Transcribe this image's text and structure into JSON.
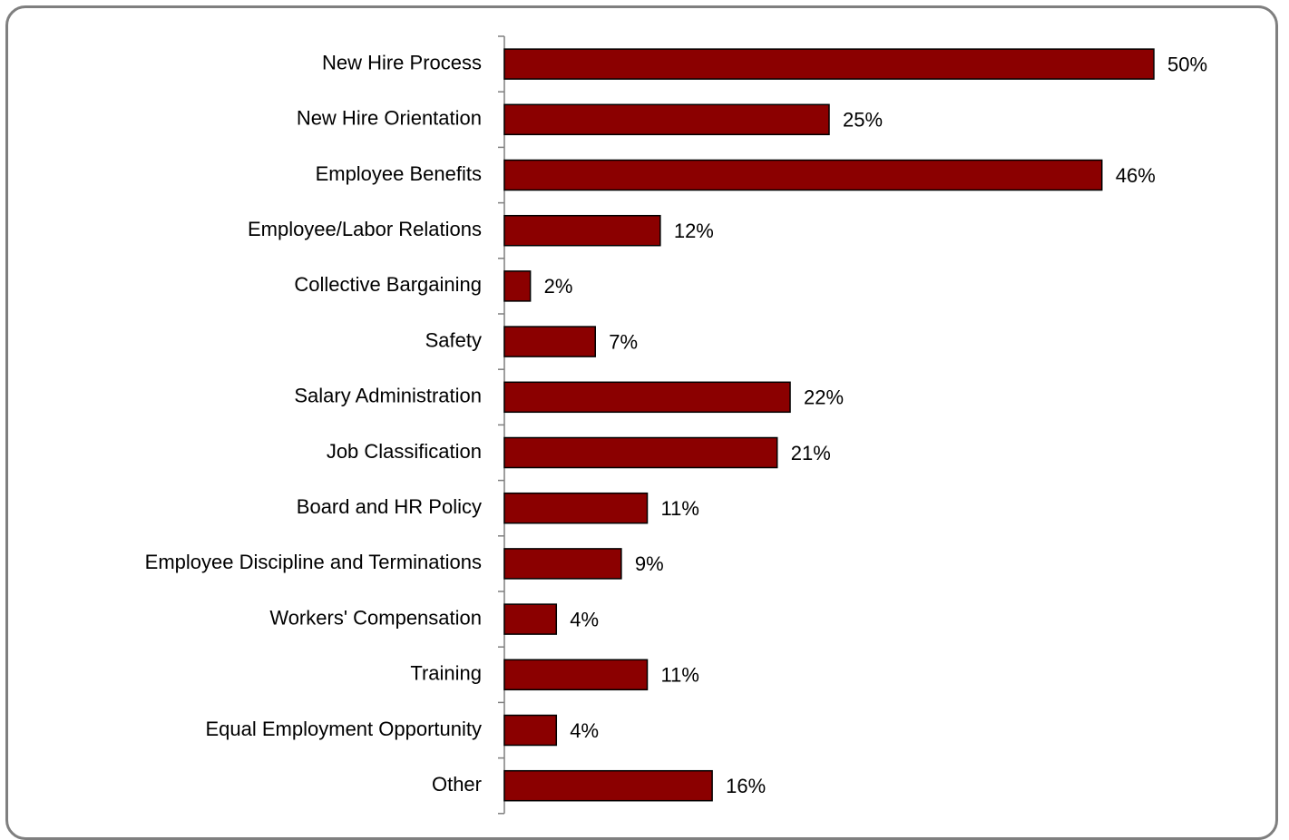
{
  "chart_data": {
    "type": "bar",
    "orientation": "horizontal",
    "categories": [
      "New Hire Process",
      "New Hire Orientation",
      "Employee Benefits",
      "Employee/Labor Relations",
      "Collective Bargaining",
      "Safety",
      "Salary Administration",
      "Job Classification",
      "Board and HR Policy",
      "Employee Discipline and Terminations",
      "Workers' Compensation",
      "Training",
      "Equal Employment Opportunity",
      "Other"
    ],
    "values": [
      50,
      25,
      46,
      12,
      2,
      7,
      22,
      21,
      11,
      9,
      4,
      11,
      4,
      16
    ],
    "value_labels": [
      "50%",
      "25%",
      "46%",
      "12%",
      "2%",
      "7%",
      "22%",
      "21%",
      "11%",
      "9%",
      "4%",
      "11%",
      "4%",
      "16%"
    ],
    "unit": "%",
    "title": "",
    "xlabel": "",
    "ylabel": "",
    "xlim": [
      0,
      50
    ],
    "grid": false,
    "legend": "none",
    "bar_color": "#8b0000",
    "bar_outline_color": "#000000",
    "frame_color": "#7f7f7f"
  }
}
